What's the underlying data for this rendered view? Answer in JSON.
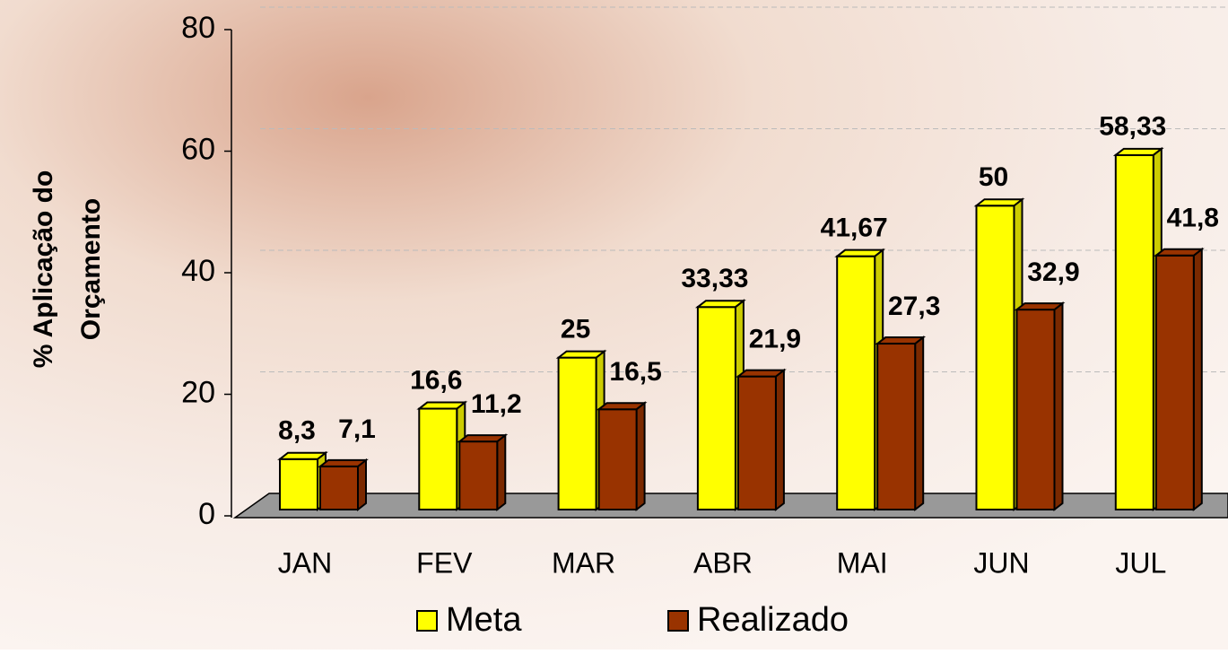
{
  "chart_data": {
    "type": "bar",
    "y_label": [
      "% Aplicação do",
      "Orçamento"
    ],
    "categories": [
      "JAN",
      "FEV",
      "MAR",
      "ABR",
      "MAI",
      "JUN",
      "JUL"
    ],
    "series": [
      {
        "name": "Meta",
        "color": "#ffff00",
        "values": [
          8.3,
          16.6,
          25,
          33.33,
          41.67,
          50,
          58.33
        ],
        "value_labels": [
          "8,3",
          "16,6",
          "25",
          "33,33",
          "41,67",
          "50",
          "58,33"
        ]
      },
      {
        "name": "Realizado",
        "color": "#993300",
        "values": [
          7.1,
          11.2,
          16.5,
          21.9,
          27.3,
          32.9,
          41.8
        ],
        "value_labels": [
          "7,1",
          "11,2",
          "16,5",
          "21,9",
          "27,3",
          "32,9",
          "41,8"
        ]
      }
    ],
    "ylim": [
      0,
      80
    ],
    "yticks": [
      0,
      20,
      40,
      60,
      80
    ],
    "grid": true,
    "legend": "bottom"
  }
}
